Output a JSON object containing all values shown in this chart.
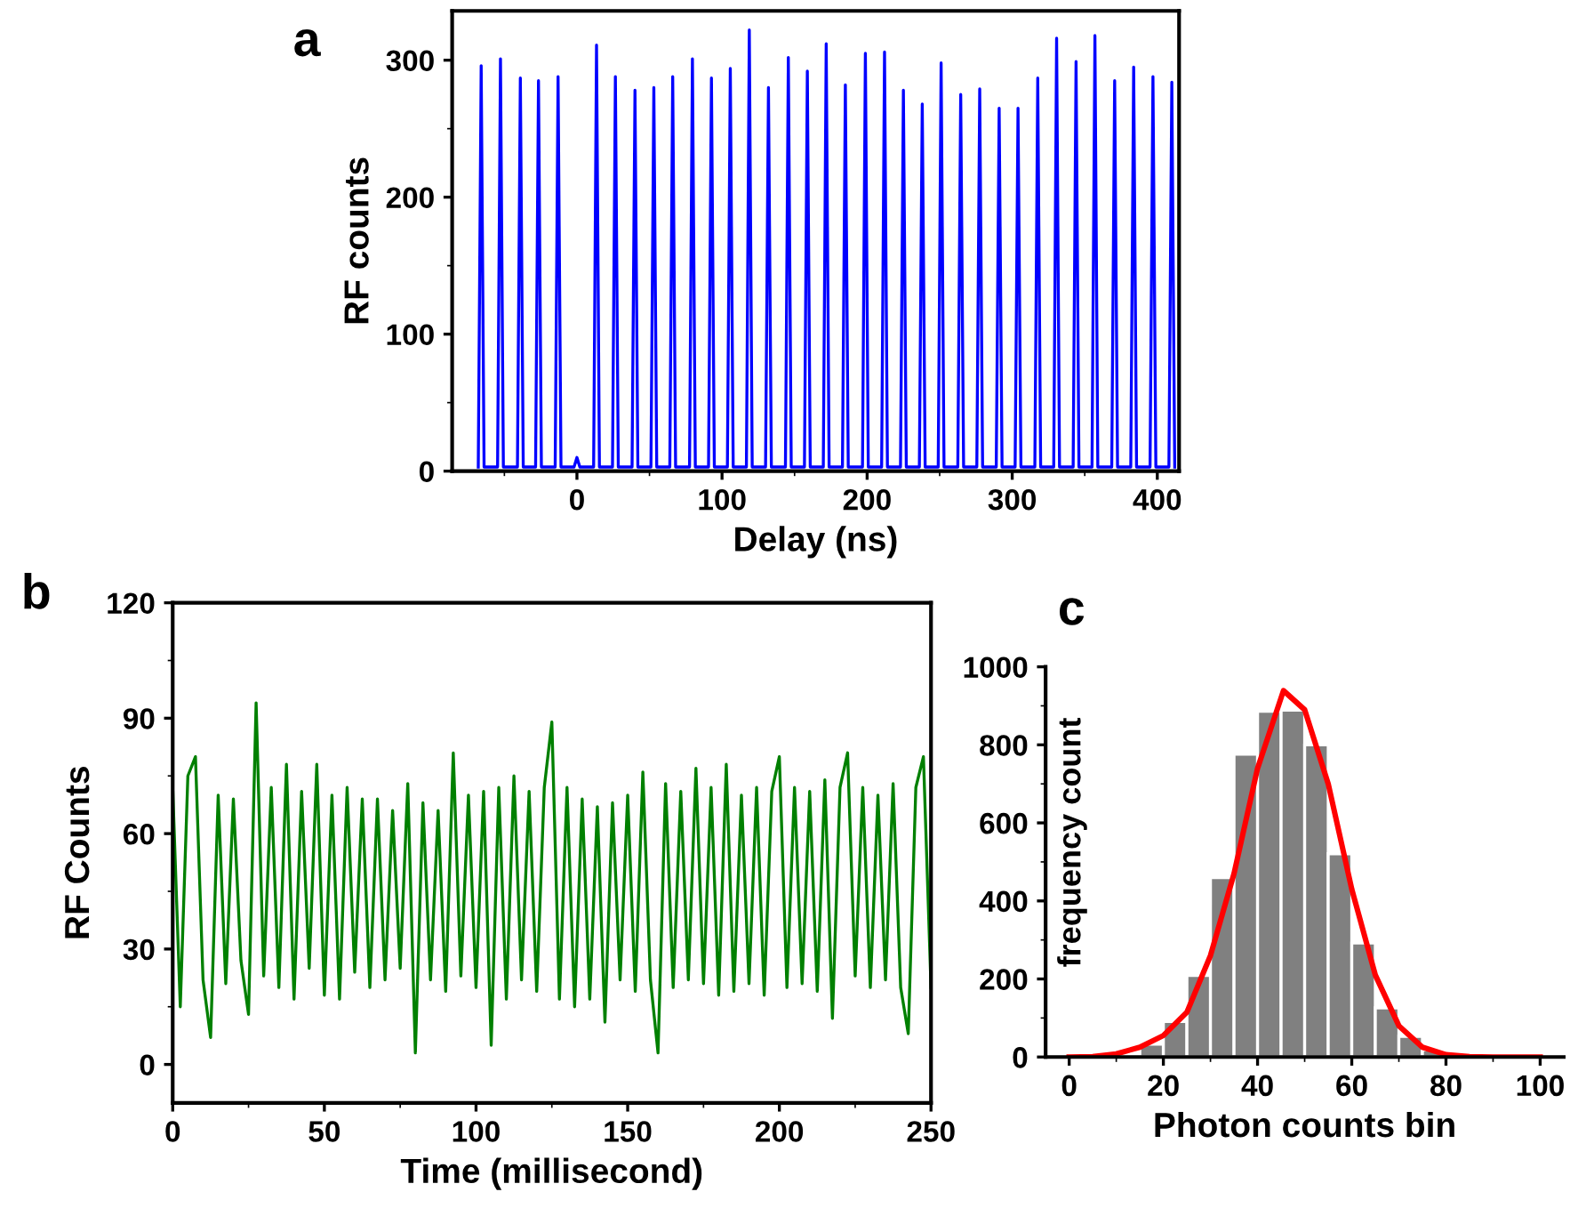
{
  "chart_data": [
    {
      "type": "line",
      "title": "a",
      "xlabel": "Delay (ns)",
      "ylabel": "RF counts",
      "xlim": [
        -86,
        415
      ],
      "ylim": [
        0,
        336
      ],
      "xticks": [
        0,
        100,
        200,
        300,
        400
      ],
      "yticks": [
        0,
        100,
        200,
        300
      ],
      "grid": false,
      "line_style": "solid",
      "marker": "none",
      "series": [
        {
          "color": "#0000ff",
          "x": [
            -68,
            -66,
            -64,
            -54.7,
            -52.7,
            -50.7,
            -41,
            -39,
            -37,
            -28.5,
            -26.5,
            -24.5,
            -15,
            -13,
            -11,
            -2,
            0,
            2,
            11.5,
            13.5,
            15.5,
            24.5,
            26.5,
            28.5,
            38,
            40,
            42,
            51,
            53,
            55,
            64,
            66,
            68,
            77.6,
            79.6,
            81.6,
            90.7,
            92.7,
            94.7,
            103.7,
            105.7,
            107.7,
            116.8,
            118.8,
            120.8,
            130,
            132,
            134,
            143.7,
            145.7,
            147.7,
            156.8,
            158.8,
            160.8,
            169.8,
            171.8,
            173.8,
            183,
            185,
            187,
            196.8,
            198.8,
            200.8,
            210,
            212,
            214,
            223,
            225,
            227,
            236,
            238,
            240,
            249,
            251,
            253,
            262.5,
            264.5,
            266.5,
            275.6,
            277.6,
            279.6,
            289,
            291,
            293,
            302,
            304,
            306,
            315.6,
            317.6,
            319.6,
            328.6,
            330.6,
            332.6,
            342,
            344,
            346,
            355,
            357,
            359,
            368.6,
            370.6,
            372.6,
            381.7,
            383.7,
            385.7,
            395,
            397,
            399,
            408,
            410,
            412
          ],
          "values": [
            3,
            296,
            3,
            3,
            301,
            3,
            3,
            287,
            3,
            3,
            285,
            3,
            3,
            288,
            3,
            3,
            10,
            3,
            3,
            311,
            3,
            3,
            288,
            3,
            3,
            278,
            3,
            3,
            280,
            3,
            3,
            288,
            3,
            3,
            301,
            3,
            3,
            287,
            3,
            3,
            294,
            3,
            3,
            322,
            3,
            3,
            280,
            3,
            3,
            302,
            3,
            3,
            292,
            3,
            3,
            312,
            3,
            3,
            282,
            3,
            3,
            305,
            3,
            3,
            306,
            3,
            3,
            278,
            3,
            3,
            268,
            3,
            3,
            298,
            3,
            3,
            275,
            3,
            3,
            279,
            3,
            3,
            265,
            3,
            3,
            265,
            3,
            3,
            287,
            3,
            3,
            316,
            3,
            3,
            299,
            3,
            3,
            318,
            3,
            3,
            285,
            3,
            3,
            295,
            3,
            3,
            288,
            3,
            3,
            284,
            3
          ]
        }
      ]
    },
    {
      "type": "line",
      "title": "b",
      "xlabel": "Time (millisecond)",
      "ylabel": "RF Counts",
      "xlim": [
        0,
        250
      ],
      "ylim": [
        -10,
        120
      ],
      "xticks": [
        0,
        50,
        100,
        150,
        200,
        250
      ],
      "yticks": [
        0,
        30,
        60,
        90,
        120
      ],
      "grid": false,
      "line_style": "solid",
      "marker": "none",
      "series": [
        {
          "color": "#008000",
          "x": [
            0,
            2.5,
            5,
            7.5,
            10,
            12.5,
            15,
            17.5,
            20,
            22.5,
            25,
            27.5,
            30,
            32.5,
            35,
            37.5,
            40,
            42.5,
            45,
            47.5,
            50,
            52.5,
            55,
            57.5,
            60,
            62.5,
            65,
            67.5,
            70,
            72.5,
            75,
            77.5,
            80,
            82.5,
            85,
            87.5,
            90,
            92.5,
            95,
            97.5,
            100,
            102.5,
            105,
            107.5,
            110,
            112.5,
            115,
            117.5,
            120,
            122.5,
            125,
            127.5,
            130,
            132.5,
            135,
            137.5,
            140,
            142.5,
            145,
            147.5,
            150,
            152.5,
            155,
            157.5,
            160,
            162.5,
            165,
            167.5,
            170,
            172.5,
            175,
            177.5,
            180,
            182.5,
            185,
            187.5,
            190,
            192.5,
            195,
            197.5,
            200,
            202.5,
            205,
            207.5,
            210,
            212.5,
            215,
            217.5,
            220,
            222.5,
            225,
            227.5,
            230,
            232.5,
            235,
            237.5,
            240,
            242.5,
            245,
            247.5,
            250
          ],
          "values": [
            72,
            15,
            75,
            80,
            22,
            7,
            70,
            21,
            69,
            27,
            13,
            94,
            23,
            72,
            20,
            78,
            17,
            71,
            25,
            78,
            18,
            70,
            17,
            72,
            24,
            69,
            20,
            69,
            22,
            66,
            25,
            73,
            3,
            68,
            22,
            66,
            19,
            81,
            23,
            70,
            20,
            71,
            5,
            72,
            17,
            75,
            22,
            71,
            19,
            72,
            89,
            17,
            72,
            15,
            69,
            17,
            67,
            11,
            68,
            22,
            70,
            19,
            76,
            22,
            3,
            73,
            20,
            71,
            22,
            77,
            21,
            72,
            18,
            78,
            19,
            70,
            21,
            72,
            18,
            71,
            80,
            20,
            72,
            21,
            71,
            19,
            74,
            12,
            72,
            81,
            23,
            72,
            20,
            70,
            22,
            73,
            20,
            8,
            72,
            80,
            20
          ]
        }
      ]
    },
    {
      "type": "histogram",
      "title": "c",
      "xlabel": "Photon counts bin",
      "ylabel": "frequency count",
      "xlim": [
        -5,
        105
      ],
      "ylim": [
        0,
        1000
      ],
      "xticks": [
        0,
        20,
        40,
        60,
        80,
        100
      ],
      "yticks": [
        0,
        200,
        400,
        600,
        800,
        1000
      ],
      "grid": false,
      "color": "#808080",
      "bins": [
        15,
        20,
        25,
        30,
        35,
        40,
        45,
        50,
        55,
        60,
        65,
        70,
        75,
        80,
        85
      ],
      "values": [
        33,
        91,
        209,
        460,
        776,
        886,
        889,
        800,
        521,
        292,
        126,
        53,
        18,
        3
      ],
      "series": [
        {
          "type": "line",
          "color": "#ff0000",
          "x": [
            0,
            5,
            10,
            15,
            20,
            25,
            30,
            35,
            40,
            45.5,
            50,
            55,
            60,
            65,
            70,
            75,
            80,
            85,
            90,
            100
          ],
          "values": [
            0,
            1,
            8,
            25,
            55,
            115,
            260,
            470,
            740,
            939,
            890,
            700,
            430,
            210,
            80,
            25,
            6,
            1,
            0,
            0
          ]
        }
      ]
    }
  ]
}
